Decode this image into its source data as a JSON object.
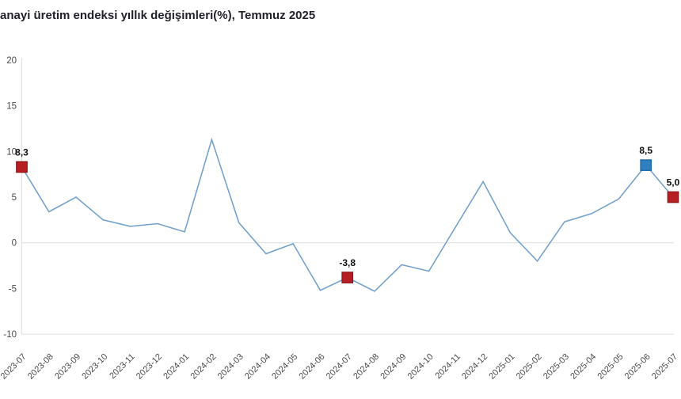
{
  "title": "anayi üretim endeksi yıllık değişimleri(%), Temmuz 2025",
  "colors": {
    "line": "#74a2cd",
    "axis": "#dcdcdc",
    "zero_gridline": "#dcdcdc",
    "red_marker_fill": "#b51f24",
    "red_marker_border": "#8a1418",
    "blue_marker_fill": "#2e80c1",
    "blue_marker_border": "#1d66a0",
    "tick_text": "#4a4a4a",
    "title_text": "#21212b",
    "point_label_text": "#101010"
  },
  "chart_data": {
    "type": "line",
    "title": "anayi üretim endeksi yıllık değişimleri(%), Temmuz 2025",
    "xlabel": "",
    "ylabel": "",
    "ylim": [
      -10,
      20
    ],
    "yticks": [
      20,
      15,
      10,
      5,
      0,
      -5,
      -10
    ],
    "grid": "zero line and bottom axis only",
    "legend": "none",
    "x": [
      "2023-07",
      "2023-08",
      "2023-09",
      "2023-10",
      "2023-11",
      "2023-12",
      "2024-01",
      "2024-02",
      "2024-03",
      "2024-04",
      "2024-05",
      "2024-06",
      "2024-07",
      "2024-08",
      "2024-09",
      "2024-10",
      "2024-11",
      "2024-12",
      "2025-01",
      "2025-02",
      "2025-03",
      "2025-04",
      "2025-05",
      "2025-06",
      "2025-07"
    ],
    "values": [
      8.3,
      3.4,
      5.0,
      2.5,
      1.8,
      2.1,
      1.2,
      11.3,
      2.2,
      -1.2,
      -0.1,
      -5.2,
      -3.8,
      -5.3,
      -2.4,
      -3.1,
      1.8,
      6.7,
      1.1,
      -2.0,
      2.3,
      3.2,
      4.8,
      8.5,
      5.0
    ],
    "annotated_points": [
      {
        "x": "2023-07",
        "value": 8.3,
        "label": "8,3",
        "marker": "square",
        "color": "red"
      },
      {
        "x": "2024-07",
        "value": -3.8,
        "label": "-3,8",
        "marker": "square",
        "color": "red"
      },
      {
        "x": "2025-06",
        "value": 8.5,
        "label": "8,5",
        "marker": "square",
        "color": "blue"
      },
      {
        "x": "2025-07",
        "value": 5.0,
        "label": "5,0",
        "marker": "square",
        "color": "red"
      }
    ]
  }
}
